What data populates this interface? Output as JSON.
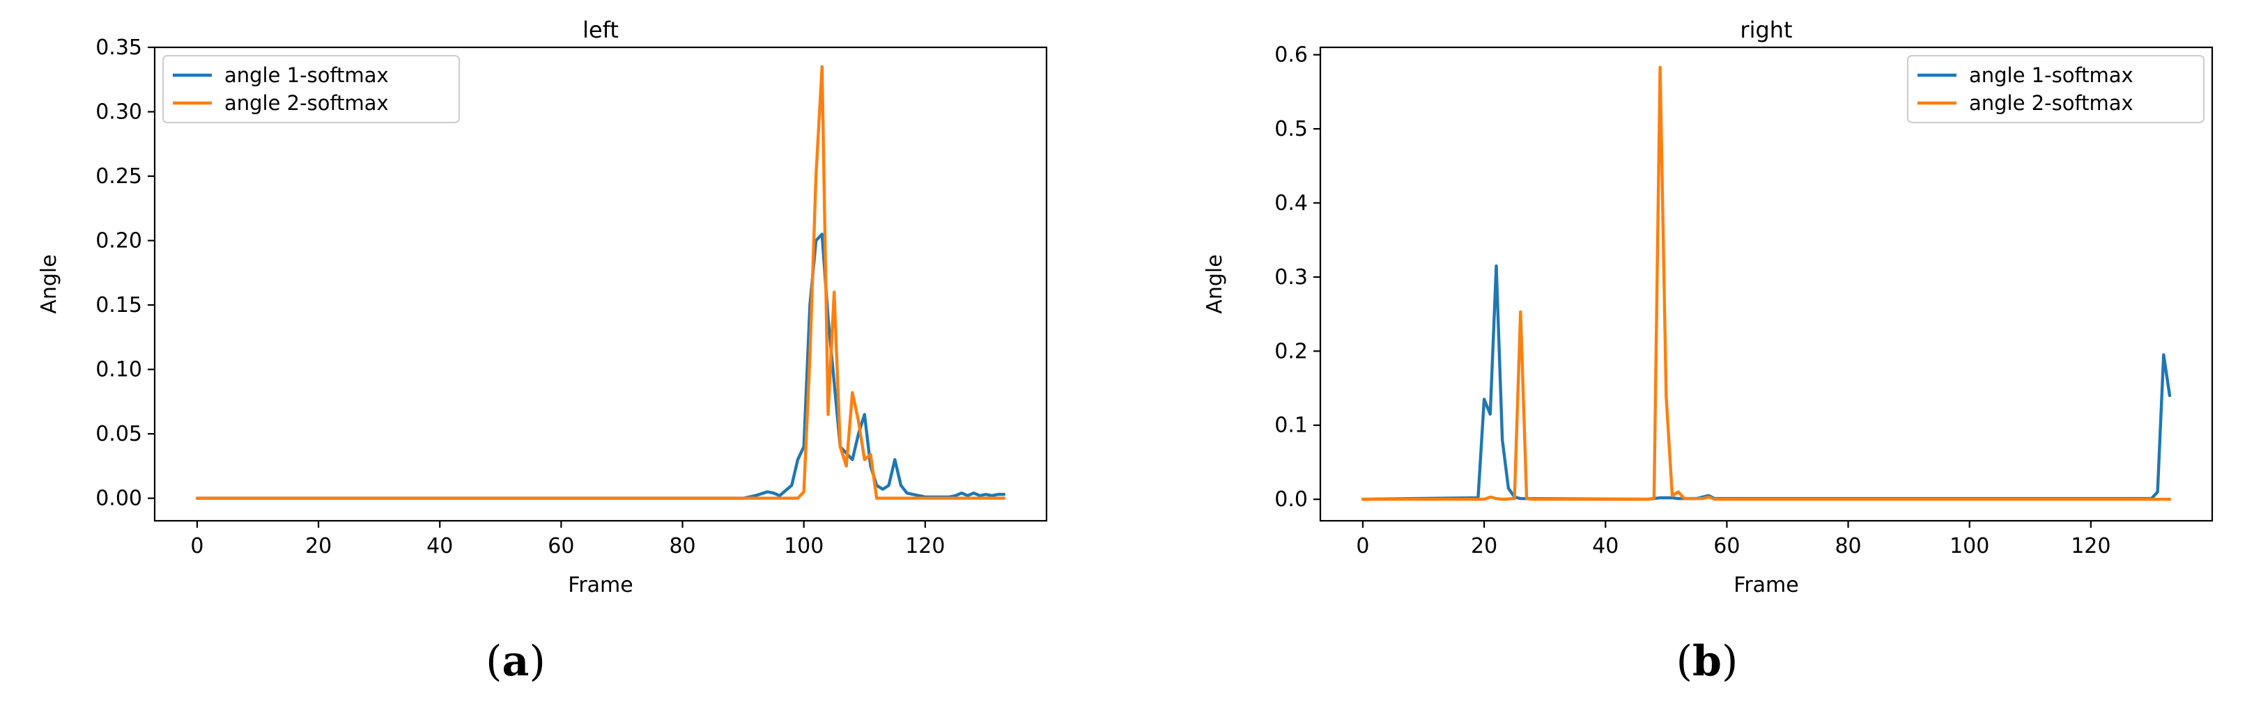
{
  "chart_data": [
    {
      "type": "line",
      "title": "left",
      "xlabel": "Frame",
      "ylabel": "Angle",
      "xlim": [
        -7,
        140
      ],
      "ylim": [
        -0.0175,
        0.35
      ],
      "xticks": [
        0,
        20,
        40,
        60,
        80,
        100,
        120
      ],
      "yticks": [
        0.0,
        0.05,
        0.1,
        0.15,
        0.2,
        0.25,
        0.3,
        0.35
      ],
      "ytick_labels": [
        "0.00",
        "0.05",
        "0.10",
        "0.15",
        "0.20",
        "0.25",
        "0.30",
        "0.35"
      ],
      "legend_position": "top-left",
      "caption": {
        "letter": "a"
      },
      "series": [
        {
          "name": "angle 1-softmax",
          "color": "#1f77b4",
          "x": [
            0,
            90,
            92,
            94,
            95,
            96,
            98,
            99,
            100,
            101,
            102,
            103,
            104,
            105,
            106,
            107,
            108,
            109,
            110,
            111,
            112,
            113,
            114,
            115,
            116,
            117,
            118,
            119,
            120,
            121,
            122,
            124,
            125,
            126,
            127,
            128,
            129,
            130,
            131,
            132,
            133
          ],
          "y": [
            0,
            0,
            0.002,
            0.005,
            0.004,
            0.002,
            0.01,
            0.03,
            0.04,
            0.15,
            0.2,
            0.205,
            0.14,
            0.09,
            0.04,
            0.035,
            0.03,
            0.05,
            0.065,
            0.025,
            0.01,
            0.007,
            0.01,
            0.03,
            0.01,
            0.004,
            0.003,
            0.002,
            0.001,
            0.001,
            0.001,
            0.001,
            0.002,
            0.004,
            0.002,
            0.004,
            0.002,
            0.003,
            0.002,
            0.003,
            0.003
          ]
        },
        {
          "name": "angle 2-softmax",
          "color": "#ff7f0e",
          "x": [
            0,
            99,
            100,
            101,
            102,
            103,
            104,
            105,
            106,
            107,
            108,
            109,
            110,
            111,
            112,
            133
          ],
          "y": [
            0,
            0,
            0.005,
            0.11,
            0.25,
            0.335,
            0.065,
            0.16,
            0.04,
            0.025,
            0.082,
            0.06,
            0.03,
            0.034,
            0,
            0
          ]
        }
      ]
    },
    {
      "type": "line",
      "title": "right",
      "xlabel": "Frame",
      "ylabel": "Angle",
      "xlim": [
        -7,
        140
      ],
      "ylim": [
        -0.029,
        0.61
      ],
      "xticks": [
        0,
        20,
        40,
        60,
        80,
        100,
        120
      ],
      "yticks": [
        0.0,
        0.1,
        0.2,
        0.3,
        0.4,
        0.5,
        0.6
      ],
      "ytick_labels": [
        "0.0",
        "0.1",
        "0.2",
        "0.3",
        "0.4",
        "0.5",
        "0.6"
      ],
      "legend_position": "top-right",
      "caption": {
        "letter": "b"
      },
      "series": [
        {
          "name": "angle 1-softmax",
          "color": "#1f77b4",
          "x": [
            0,
            19,
            20,
            21,
            22,
            23,
            24,
            25,
            26,
            47,
            48,
            49,
            50,
            51,
            52,
            55,
            56,
            57,
            58,
            130,
            131,
            132,
            133
          ],
          "y": [
            0,
            0.002,
            0.135,
            0.115,
            0.315,
            0.08,
            0.015,
            0.003,
            0.001,
            0,
            0.001,
            0.002,
            0.002,
            0.002,
            0.001,
            0.001,
            0.003,
            0.005,
            0.001,
            0.001,
            0.01,
            0.195,
            0.14
          ]
        },
        {
          "name": "angle 2-softmax",
          "color": "#ff7f0e",
          "x": [
            0,
            20,
            21,
            22,
            23,
            25,
            26,
            27,
            28,
            47,
            48,
            49,
            50,
            51,
            52,
            53,
            56,
            57,
            58,
            133
          ],
          "y": [
            0,
            0,
            0.003,
            0.001,
            0,
            0.001,
            0.253,
            0.001,
            0,
            0,
            0.001,
            0.583,
            0.14,
            0.005,
            0.01,
            0.001,
            0.001,
            0.003,
            0,
            0
          ]
        }
      ]
    }
  ]
}
